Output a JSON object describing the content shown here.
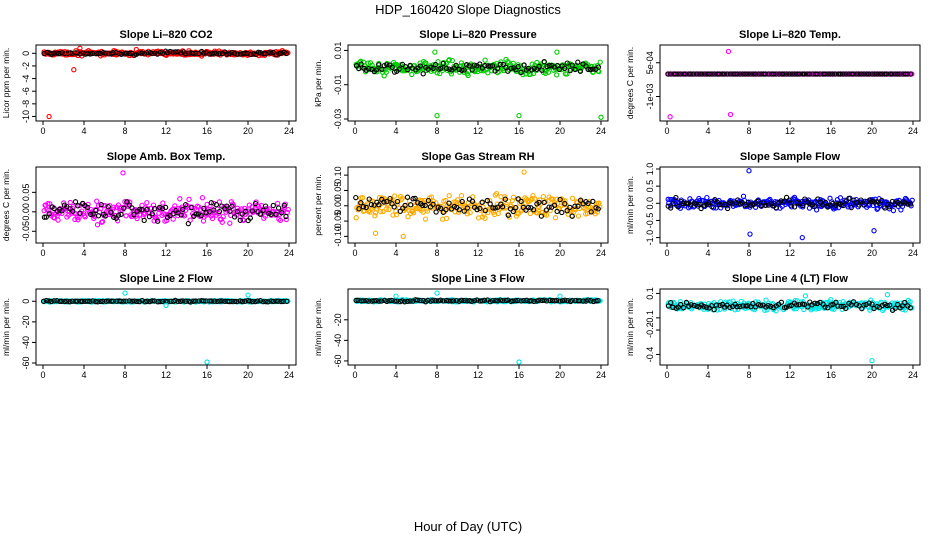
{
  "figure": {
    "title": "HDP_160420  Slope Diagnostics",
    "xlabel": "Hour of Day (UTC)"
  },
  "chart_data": [
    {
      "id": "co2",
      "type": "scatter",
      "title": "Slope Li–820 CO2",
      "ylabel": "Licor ppm per min.",
      "color": "#ff0000",
      "xlim": [
        0,
        24
      ],
      "xticks": [
        0,
        4,
        8,
        12,
        16,
        20,
        24
      ],
      "xtick_labels": [
        "0",
        "4",
        "8",
        "12",
        "16",
        "20",
        "24"
      ],
      "ylim": [
        -10.4,
        1.0
      ],
      "yticks": [
        0,
        -2,
        -4,
        -6,
        -8,
        -10
      ],
      "ytick_labels": [
        "0",
        "-2",
        "-4",
        "-6",
        "-8",
        "-10"
      ],
      "band": {
        "center": 0.0,
        "spread": 0.35
      },
      "outliers": [
        [
          0.6,
          -10.0
        ],
        [
          3.0,
          -2.6
        ],
        [
          3.2,
          0.4
        ],
        [
          3.6,
          0.8
        ],
        [
          9.1,
          0.6
        ],
        [
          2.4,
          0.2
        ]
      ]
    },
    {
      "id": "pressure",
      "type": "scatter",
      "title": "Slope Li–820 Pressure",
      "ylabel": "kPa per min.",
      "color": "#00cc00",
      "xlim": [
        0,
        24
      ],
      "xticks": [
        0,
        4,
        8,
        12,
        16,
        20,
        24
      ],
      "xtick_labels": [
        "0",
        "4",
        "8",
        "12",
        "16",
        "20",
        "24"
      ],
      "ylim": [
        -0.03,
        0.012
      ],
      "yticks": [
        0.01,
        -0.01,
        -0.03
      ],
      "ytick_labels": [
        "0.01",
        "-0.01",
        "-0.03"
      ],
      "band": {
        "center": 0.0,
        "spread": 0.004
      },
      "outliers": [
        [
          8.0,
          -0.028
        ],
        [
          16.0,
          -0.028
        ],
        [
          24.0,
          -0.029
        ],
        [
          7.8,
          0.009
        ],
        [
          19.7,
          0.009
        ]
      ]
    },
    {
      "id": "temp",
      "type": "scatter",
      "title": "Slope Li–820 Temp.",
      "ylabel": "degrees C per min.",
      "color": "#ff00ff",
      "xlim": [
        0,
        24
      ],
      "xticks": [
        0,
        4,
        8,
        12,
        16,
        20,
        24
      ],
      "xtick_labels": [
        "0",
        "4",
        "8",
        "12",
        "16",
        "20",
        "24"
      ],
      "ylim": [
        -0.002,
        0.0012
      ],
      "yticks": [
        0.0005,
        -0.001
      ],
      "ytick_labels": [
        "5e-04",
        "-1e-03"
      ],
      "band": {
        "center": 0.0,
        "spread": 0.0
      },
      "outliers": [
        [
          6.0,
          0.001
        ],
        [
          6.2,
          -0.0018
        ],
        [
          0.3,
          -0.0019
        ]
      ]
    },
    {
      "id": "boxtemp",
      "type": "scatter",
      "title": "Slope Amb. Box Temp.",
      "ylabel": "degrees C per min.",
      "color": "#ff00ff",
      "xlim": [
        0,
        24
      ],
      "xticks": [
        0,
        4,
        8,
        12,
        16,
        20,
        24
      ],
      "xtick_labels": [
        "0",
        "4",
        "8",
        "12",
        "16",
        "20",
        "24"
      ],
      "ylim": [
        -0.075,
        0.11
      ],
      "yticks": [
        0.05,
        0.0,
        -0.05
      ],
      "ytick_labels": [
        "0.05",
        "0.00",
        "-0.05"
      ],
      "band": {
        "center": 0.0,
        "spread": 0.03
      },
      "outliers": [
        [
          7.8,
          0.1
        ]
      ]
    },
    {
      "id": "rh",
      "type": "scatter",
      "title": "Slope Gas Stream RH",
      "ylabel": "percent per min.",
      "color": "#ffaa00",
      "xlim": [
        0,
        24
      ],
      "xticks": [
        0,
        4,
        8,
        12,
        16,
        20,
        24
      ],
      "xtick_labels": [
        "0",
        "4",
        "8",
        "12",
        "16",
        "20",
        "24"
      ],
      "ylim": [
        -0.115,
        0.12
      ],
      "yticks": [
        0.1,
        0.05,
        0.0,
        -0.05,
        -0.1
      ],
      "ytick_labels": [
        "0.10",
        "0.05",
        "0.00",
        "-0.05",
        "-0.10"
      ],
      "band": {
        "center": 0.0,
        "spread": 0.04
      },
      "outliers": [
        [
          4.7,
          -0.1
        ],
        [
          2.0,
          -0.09
        ],
        [
          16.5,
          0.11
        ]
      ]
    },
    {
      "id": "sampleflow",
      "type": "scatter",
      "title": "Slope Sample Flow",
      "ylabel": "ml/min per min.",
      "color": "#0000ff",
      "xlim": [
        0,
        24
      ],
      "xticks": [
        0,
        4,
        8,
        12,
        16,
        20,
        24
      ],
      "xtick_labels": [
        "0",
        "4",
        "8",
        "12",
        "16",
        "20",
        "24"
      ],
      "ylim": [
        -1.1,
        1.0
      ],
      "yticks": [
        1.0,
        0.5,
        0.0,
        -0.5,
        -1.0
      ],
      "ytick_labels": [
        "1.0",
        "0.5",
        "0.0",
        "-0.5",
        "-1.0"
      ],
      "band": {
        "center": 0.0,
        "spread": 0.18
      },
      "outliers": [
        [
          8.0,
          0.95
        ],
        [
          8.1,
          -0.9
        ],
        [
          13.2,
          -1.0
        ],
        [
          20.2,
          -0.8
        ]
      ]
    },
    {
      "id": "line2",
      "type": "scatter",
      "title": "Slope Line 2 Flow",
      "ylabel": "ml/min per min.",
      "color": "#00e5e5",
      "xlim": [
        0,
        24
      ],
      "xticks": [
        0,
        4,
        8,
        12,
        16,
        20,
        24
      ],
      "xtick_labels": [
        "0",
        "4",
        "8",
        "12",
        "16",
        "20",
        "24"
      ],
      "ylim": [
        -60,
        10
      ],
      "yticks": [
        0,
        -20,
        -40,
        -60
      ],
      "ytick_labels": [
        "0",
        "-20",
        "-40",
        "-60"
      ],
      "band": {
        "center": 0.0,
        "spread": 0.8
      },
      "outliers": [
        [
          16.0,
          -59.0
        ],
        [
          8.0,
          8.0
        ],
        [
          20.0,
          6.0
        ],
        [
          12.0,
          -4.0
        ]
      ]
    },
    {
      "id": "line3",
      "type": "scatter",
      "title": "Slope Line 3 Flow",
      "ylabel": "ml/min per min.",
      "color": "#00e5e5",
      "xlim": [
        0,
        24
      ],
      "xticks": [
        0,
        4,
        8,
        12,
        16,
        20,
        24
      ],
      "xtick_labels": [
        "0",
        "4",
        "8",
        "12",
        "16",
        "20",
        "24"
      ],
      "ylim": [
        -62,
        8
      ],
      "yticks": [
        -20,
        -40,
        -60
      ],
      "ytick_labels": [
        "-20",
        "-40",
        "-60"
      ],
      "band": {
        "center": -1.5,
        "spread": 1.2
      },
      "outliers": [
        [
          16.0,
          -61.0
        ],
        [
          8.0,
          6.0
        ],
        [
          4.0,
          3.0
        ],
        [
          20.0,
          3.0
        ]
      ]
    },
    {
      "id": "line4",
      "type": "scatter",
      "title": "Slope Line 4 (LT) Flow",
      "ylabel": "ml/min per min.",
      "color": "#00e5e5",
      "xlim": [
        0,
        24
      ],
      "xticks": [
        0,
        4,
        8,
        12,
        16,
        20,
        24
      ],
      "xtick_labels": [
        "0",
        "4",
        "8",
        "12",
        "16",
        "20",
        "24"
      ],
      "ylim": [
        -0.47,
        0.12
      ],
      "yticks": [
        0.1,
        -0.1,
        -0.2,
        -0.4
      ],
      "ytick_labels": [
        "0.1",
        "-0.1",
        "-0.2",
        "-0.4"
      ],
      "band": {
        "center": 0.0,
        "spread": 0.04
      },
      "outliers": [
        [
          20.0,
          -0.45
        ],
        [
          21.5,
          0.09
        ],
        [
          13.5,
          0.08
        ]
      ]
    }
  ]
}
